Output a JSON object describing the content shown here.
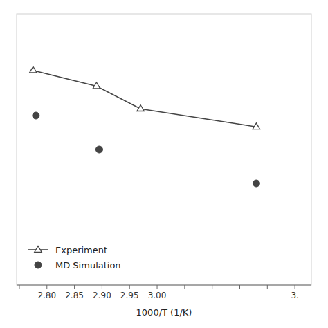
{
  "chart_data": {
    "type": "line",
    "x_label": "1000/T (1/K)",
    "xlim": [
      2.745,
      3.28
    ],
    "ylim": [
      0.0,
      12.0
    ],
    "xticks": [
      {
        "value": 2.75,
        "label": null
      },
      {
        "value": 2.8,
        "label": "2.80"
      },
      {
        "value": 2.85,
        "label": "2.85"
      },
      {
        "value": 2.9,
        "label": "2.90"
      },
      {
        "value": 2.95,
        "label": "2.95"
      },
      {
        "value": 3.0,
        "label": "3.00"
      },
      {
        "value": 3.05,
        "label": null
      },
      {
        "value": 3.1,
        "label": null
      },
      {
        "value": 3.15,
        "label": null
      },
      {
        "value": 3.2,
        "label": null
      },
      {
        "value": 3.25,
        "label": "3."
      }
    ],
    "tick_labels": "x",
    "grid": false,
    "legend": "lower left",
    "series": [
      {
        "name": "Experiment",
        "color": "#444444",
        "marker": "triangle",
        "line_style": "solid",
        "x": [
          2.775,
          2.89,
          2.97,
          3.18
        ],
        "values": [
          9.5,
          8.8,
          7.8,
          7.0
        ]
      },
      {
        "name": "MD Simulation",
        "color": "#444444",
        "marker": "circle",
        "line_style": "none",
        "x": [
          2.78,
          2.895,
          3.18
        ],
        "values": [
          7.5,
          6.0,
          4.5
        ]
      }
    ]
  }
}
